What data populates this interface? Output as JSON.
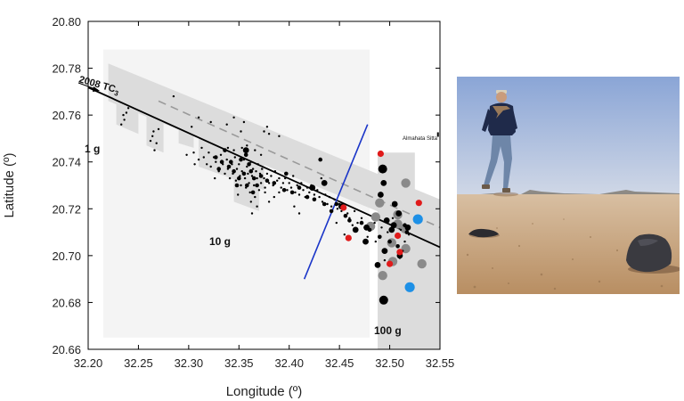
{
  "chart_data": {
    "type": "scatter",
    "xlabel": "Longitude (º)",
    "ylabel": "Latitude (º)",
    "xlim": [
      32.2,
      32.55
    ],
    "ylim": [
      20.66,
      20.8
    ],
    "x_ticks": [
      "32.20",
      "32.25",
      "32.30",
      "32.35",
      "32.40",
      "32.45",
      "32.50",
      "32.55"
    ],
    "y_ticks": [
      "20.66",
      "20.68",
      "20.70",
      "20.72",
      "20.74",
      "20.76",
      "20.78",
      "20.80"
    ],
    "grid": false,
    "annotations": {
      "track_label": "2008 TC",
      "track_sub": "3",
      "mass_1g": "1 g",
      "mass_10g": "10 g",
      "mass_100g": "100 g",
      "station": "Almahata Sitta"
    },
    "trajectory": [
      [
        32.2,
        20.7718
      ],
      [
        32.55,
        20.7036
      ]
    ],
    "dashed_track": [
      [
        32.27,
        20.766
      ],
      [
        32.55,
        20.712
      ]
    ],
    "blue_line": [
      [
        32.415,
        20.69
      ],
      [
        32.478,
        20.756
      ]
    ],
    "station_point": [
      32.548,
      20.7515
    ],
    "search_bands": [
      [
        [
          32.22,
          20.782
        ],
        [
          32.55,
          20.724
        ],
        [
          32.55,
          20.708
        ],
        [
          32.22,
          20.766
        ]
      ],
      [
        [
          32.275,
          20.772
        ],
        [
          32.55,
          20.722
        ],
        [
          32.55,
          20.708
        ],
        [
          32.275,
          20.757
        ]
      ],
      [
        [
          32.228,
          20.77
        ],
        [
          32.25,
          20.766
        ],
        [
          32.25,
          20.752
        ],
        [
          32.228,
          20.756
        ]
      ],
      [
        [
          32.258,
          20.763
        ],
        [
          32.275,
          20.76
        ],
        [
          32.275,
          20.744
        ],
        [
          32.258,
          20.747
        ]
      ],
      [
        [
          32.29,
          20.762
        ],
        [
          32.305,
          20.76
        ],
        [
          32.305,
          20.746
        ],
        [
          32.29,
          20.748
        ]
      ],
      [
        [
          32.31,
          20.752
        ],
        [
          32.375,
          20.742
        ],
        [
          32.375,
          20.728
        ],
        [
          32.31,
          20.738
        ]
      ],
      [
        [
          32.345,
          20.744
        ],
        [
          32.37,
          20.74
        ],
        [
          32.37,
          20.719
        ],
        [
          32.345,
          20.723
        ]
      ],
      [
        [
          32.488,
          20.744
        ],
        [
          32.525,
          20.744
        ],
        [
          32.525,
          20.686
        ],
        [
          32.488,
          20.686
        ]
      ],
      [
        [
          32.488,
          20.72
        ],
        [
          32.55,
          20.72
        ],
        [
          32.55,
          20.66
        ],
        [
          32.488,
          20.66
        ]
      ]
    ],
    "meteorites": {
      "small": [
        [
          32.238,
          20.761
        ],
        [
          32.236,
          20.758
        ],
        [
          32.24,
          20.763
        ],
        [
          32.233,
          20.756
        ],
        [
          32.235,
          20.76
        ],
        [
          32.265,
          20.753
        ],
        [
          32.262,
          20.749
        ],
        [
          32.266,
          20.745
        ],
        [
          32.264,
          20.751
        ],
        [
          32.268,
          20.748
        ],
        [
          32.27,
          20.754
        ],
        [
          32.285,
          20.768
        ],
        [
          32.303,
          20.755
        ],
        [
          32.31,
          20.759
        ],
        [
          32.322,
          20.757
        ],
        [
          32.338,
          20.756
        ],
        [
          32.345,
          20.759
        ],
        [
          32.352,
          20.753
        ],
        [
          32.355,
          20.757
        ],
        [
          32.375,
          20.753
        ],
        [
          32.378,
          20.755
        ],
        [
          32.38,
          20.752
        ],
        [
          32.39,
          20.751
        ],
        [
          32.298,
          20.743
        ],
        [
          32.305,
          20.744
        ],
        [
          32.31,
          20.741
        ],
        [
          32.315,
          20.742
        ],
        [
          32.318,
          20.739
        ],
        [
          32.32,
          20.744
        ],
        [
          32.322,
          20.738
        ],
        [
          32.325,
          20.742
        ],
        [
          32.327,
          20.74
        ],
        [
          32.33,
          20.736
        ],
        [
          32.332,
          20.743
        ],
        [
          32.334,
          20.739
        ],
        [
          32.336,
          20.735
        ],
        [
          32.338,
          20.741
        ],
        [
          32.339,
          20.737
        ],
        [
          32.341,
          20.733
        ],
        [
          32.343,
          20.739
        ],
        [
          32.344,
          20.735
        ],
        [
          32.346,
          20.742
        ],
        [
          32.347,
          20.732
        ],
        [
          32.348,
          20.737
        ],
        [
          32.35,
          20.739
        ],
        [
          32.351,
          20.734
        ],
        [
          32.352,
          20.73
        ],
        [
          32.353,
          20.736
        ],
        [
          32.355,
          20.741
        ],
        [
          32.356,
          20.733
        ],
        [
          32.357,
          20.729
        ],
        [
          32.358,
          20.738
        ],
        [
          32.359,
          20.735
        ],
        [
          32.36,
          20.731
        ],
        [
          32.361,
          20.727
        ],
        [
          32.362,
          20.74
        ],
        [
          32.363,
          20.734
        ],
        [
          32.364,
          20.737
        ],
        [
          32.365,
          20.73
        ],
        [
          32.366,
          20.725
        ],
        [
          32.367,
          20.736
        ],
        [
          32.368,
          20.733
        ],
        [
          32.369,
          20.739
        ],
        [
          32.37,
          20.728
        ],
        [
          32.371,
          20.735
        ],
        [
          32.372,
          20.731
        ],
        [
          32.373,
          20.737
        ],
        [
          32.375,
          20.733
        ],
        [
          32.376,
          20.729
        ],
        [
          32.378,
          20.735
        ],
        [
          32.38,
          20.731
        ],
        [
          32.382,
          20.734
        ],
        [
          32.384,
          20.73
        ],
        [
          32.386,
          20.736
        ],
        [
          32.388,
          20.732
        ],
        [
          32.39,
          20.733
        ],
        [
          32.392,
          20.729
        ],
        [
          32.394,
          20.731
        ],
        [
          32.396,
          20.733
        ],
        [
          32.398,
          20.728
        ],
        [
          32.4,
          20.731
        ],
        [
          32.402,
          20.729
        ],
        [
          32.404,
          20.734
        ],
        [
          32.406,
          20.727
        ],
        [
          32.408,
          20.73
        ],
        [
          32.41,
          20.726
        ],
        [
          32.412,
          20.731
        ],
        [
          32.414,
          20.728
        ],
        [
          32.416,
          20.725
        ],
        [
          32.418,
          20.729
        ],
        [
          32.42,
          20.727
        ],
        [
          32.422,
          20.73
        ],
        [
          32.425,
          20.726
        ],
        [
          32.428,
          20.728
        ],
        [
          32.43,
          20.725
        ],
        [
          32.433,
          20.723
        ],
        [
          32.436,
          20.726
        ],
        [
          32.438,
          20.722
        ],
        [
          32.44,
          20.725
        ],
        [
          32.442,
          20.721
        ],
        [
          32.445,
          20.724
        ],
        [
          32.448,
          20.72
        ],
        [
          32.45,
          20.722
        ],
        [
          32.452,
          20.719
        ],
        [
          32.455,
          20.721
        ],
        [
          32.458,
          20.718
        ],
        [
          32.46,
          20.716
        ],
        [
          32.465,
          20.719
        ],
        [
          32.468,
          20.714
        ],
        [
          32.472,
          20.716
        ],
        [
          32.475,
          20.712
        ],
        [
          32.485,
          20.714
        ],
        [
          32.492,
          20.712
        ],
        [
          32.498,
          20.71
        ],
        [
          32.503,
          20.716
        ],
        [
          32.507,
          20.708
        ],
        [
          32.511,
          20.711
        ],
        [
          32.515,
          20.706
        ],
        [
          32.519,
          20.709
        ],
        [
          32.376,
          20.727
        ],
        [
          32.38,
          20.723
        ],
        [
          32.385,
          20.725
        ],
        [
          32.39,
          20.727
        ],
        [
          32.405,
          20.721
        ],
        [
          32.41,
          20.718
        ],
        [
          32.432,
          20.733
        ],
        [
          32.447,
          20.714
        ],
        [
          32.455,
          20.709
        ],
        [
          32.463,
          20.713
        ],
        [
          32.478,
          20.708
        ],
        [
          32.486,
          20.706
        ],
        [
          32.493,
          20.702
        ],
        [
          32.513,
          20.702
        ],
        [
          32.51,
          20.699
        ],
        [
          32.495,
          20.698
        ],
        [
          32.358,
          20.747
        ],
        [
          32.366,
          20.745
        ],
        [
          32.372,
          20.743
        ],
        [
          32.339,
          20.746
        ],
        [
          32.349,
          20.726
        ],
        [
          32.362,
          20.723
        ],
        [
          32.363,
          20.718
        ],
        [
          32.368,
          20.721
        ],
        [
          32.326,
          20.733
        ],
        [
          32.313,
          20.746
        ],
        [
          32.306,
          20.739
        ],
        [
          32.345,
          20.745
        ],
        [
          32.353,
          20.746
        ]
      ],
      "medium": [
        [
          32.327,
          20.742
        ],
        [
          32.333,
          20.74
        ],
        [
          32.34,
          20.738
        ],
        [
          32.345,
          20.736
        ],
        [
          32.35,
          20.733
        ],
        [
          32.355,
          20.735
        ],
        [
          32.358,
          20.73
        ],
        [
          32.362,
          20.736
        ],
        [
          32.365,
          20.733
        ],
        [
          32.36,
          20.739
        ],
        [
          32.352,
          20.741
        ],
        [
          32.368,
          20.73
        ],
        [
          32.372,
          20.734
        ],
        [
          32.378,
          20.732
        ],
        [
          32.385,
          20.731
        ],
        [
          32.395,
          20.728
        ],
        [
          32.403,
          20.727
        ],
        [
          32.41,
          20.729
        ],
        [
          32.418,
          20.725
        ],
        [
          32.425,
          20.724
        ],
        [
          32.435,
          20.722
        ],
        [
          32.442,
          20.719
        ],
        [
          32.447,
          20.722
        ],
        [
          32.456,
          20.717
        ],
        [
          32.46,
          20.715
        ],
        [
          32.472,
          20.714
        ],
        [
          32.48,
          20.711
        ],
        [
          32.49,
          20.708
        ],
        [
          32.5,
          20.706
        ],
        [
          32.508,
          20.704
        ],
        [
          32.517,
          20.71
        ],
        [
          32.515,
          20.713
        ],
        [
          32.33,
          20.737
        ],
        [
          32.342,
          20.74
        ],
        [
          32.348,
          20.73
        ],
        [
          32.336,
          20.745
        ],
        [
          32.357,
          20.743
        ],
        [
          32.364,
          20.727
        ],
        [
          32.431,
          20.741
        ],
        [
          32.397,
          20.735
        ]
      ],
      "large_black": [
        [
          32.357,
          20.745
        ],
        [
          32.423,
          20.729
        ],
        [
          32.435,
          20.731
        ],
        [
          32.452,
          20.721
        ],
        [
          32.466,
          20.711
        ],
        [
          32.477,
          20.712
        ],
        [
          32.488,
          20.696
        ],
        [
          32.495,
          20.702
        ],
        [
          32.494,
          20.731
        ],
        [
          32.491,
          20.726
        ],
        [
          32.505,
          20.722
        ],
        [
          32.509,
          20.718
        ],
        [
          32.518,
          20.712
        ],
        [
          32.497,
          20.715
        ],
        [
          32.502,
          20.711
        ],
        [
          32.476,
          20.706
        ],
        [
          32.51,
          20.7
        ],
        [
          32.504,
          20.713
        ]
      ],
      "xlarge_black": [
        [
          32.494,
          20.681
        ],
        [
          32.493,
          20.737
        ]
      ],
      "red": [
        [
          32.491,
          20.7435
        ],
        [
          32.529,
          20.7225
        ],
        [
          32.454,
          20.7205
        ],
        [
          32.508,
          20.7085
        ],
        [
          32.5,
          20.6965
        ],
        [
          32.51,
          20.7015
        ],
        [
          32.459,
          20.7075
        ]
      ],
      "blue": [
        [
          32.528,
          20.7155
        ],
        [
          32.52,
          20.6865
        ]
      ],
      "gray": [
        [
          32.516,
          20.731
        ],
        [
          32.49,
          20.7225
        ],
        [
          32.508,
          20.7135
        ],
        [
          32.515,
          20.7115
        ],
        [
          32.502,
          20.7055
        ],
        [
          32.516,
          20.703
        ],
        [
          32.486,
          20.7165
        ],
        [
          32.503,
          20.6975
        ],
        [
          32.481,
          20.7125
        ],
        [
          32.493,
          20.6915
        ],
        [
          32.508,
          20.7175
        ],
        [
          32.532,
          20.6965
        ]
      ]
    }
  },
  "photo": {
    "sky_top": "#8ea8d8",
    "sky_bottom": "#c9d4e6",
    "ground": "#c7a27b",
    "jacket": "#1f2a4a",
    "jeans": "#6e86a8"
  }
}
